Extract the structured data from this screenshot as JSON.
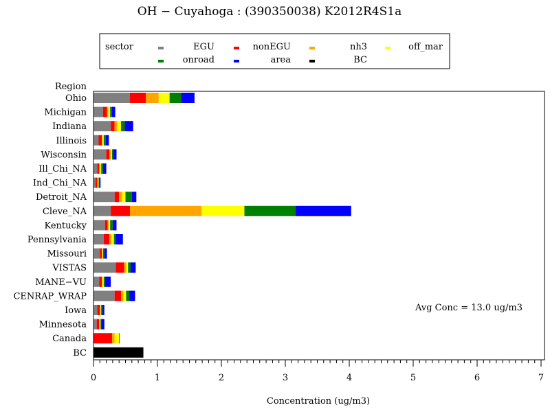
{
  "chart_data": {
    "type": "bar",
    "stacked": true,
    "orientation": "horizontal",
    "title": "OH − Cuyahoga : (390350038) K2012R4S1a",
    "xlabel": "Concentration (ug/m3)",
    "ylabel": "Region",
    "xlim": [
      0,
      7
    ],
    "xticks": [
      0,
      1,
      2,
      3,
      4,
      5,
      6,
      7
    ],
    "legend_title": "sector",
    "legend_position": "top",
    "annotation": "Avg Conc = 13.0 ug/m3",
    "categories": [
      "Ohio",
      "Michigan",
      "Indiana",
      "Illinois",
      "Wisconsin",
      "Ill_Chi_NA",
      "Ind_Chi_NA",
      "Detroit_NA",
      "Cleve_NA",
      "Kentucky",
      "Pennsylvania",
      "Missouri",
      "VISTAS",
      "MANE−VU",
      "CENRAP_WRAP",
      "Iowa",
      "Minnesota",
      "Canada",
      "BC"
    ],
    "series": [
      {
        "name": "EGU",
        "color": "#808080",
        "values": [
          0.57,
          0.15,
          0.27,
          0.08,
          0.2,
          0.06,
          0.03,
          0.33,
          0.27,
          0.18,
          0.16,
          0.1,
          0.35,
          0.09,
          0.33,
          0.06,
          0.05,
          0.0,
          0.0
        ]
      },
      {
        "name": "nonEGU",
        "color": "#ff0000",
        "values": [
          0.25,
          0.06,
          0.06,
          0.05,
          0.05,
          0.03,
          0.03,
          0.07,
          0.3,
          0.04,
          0.09,
          0.03,
          0.13,
          0.04,
          0.1,
          0.04,
          0.04,
          0.29,
          0.0
        ]
      },
      {
        "name": "nh3",
        "color": "#ffa500",
        "values": [
          0.2,
          0.02,
          0.04,
          0.01,
          0.02,
          0.01,
          0.01,
          0.05,
          1.12,
          0.02,
          0.03,
          0.01,
          0.03,
          0.01,
          0.04,
          0.01,
          0.01,
          0.04,
          0.0
        ]
      },
      {
        "name": "off_mar",
        "color": "#ffff00",
        "values": [
          0.17,
          0.03,
          0.06,
          0.02,
          0.02,
          0.02,
          0.01,
          0.05,
          0.67,
          0.02,
          0.04,
          0.01,
          0.03,
          0.02,
          0.04,
          0.01,
          0.01,
          0.07,
          0.0
        ]
      },
      {
        "name": "onroad",
        "color": "#008000",
        "values": [
          0.18,
          0.03,
          0.06,
          0.03,
          0.02,
          0.03,
          0.01,
          0.1,
          0.8,
          0.04,
          0.03,
          0.02,
          0.04,
          0.02,
          0.05,
          0.02,
          0.01,
          0.01,
          0.0
        ]
      },
      {
        "name": "area",
        "color": "#0000ff",
        "values": [
          0.21,
          0.05,
          0.13,
          0.05,
          0.05,
          0.05,
          0.02,
          0.07,
          0.87,
          0.06,
          0.11,
          0.04,
          0.08,
          0.09,
          0.09,
          0.03,
          0.05,
          0.0,
          0.0
        ]
      },
      {
        "name": "BC",
        "color": "#000000",
        "values": [
          0.0,
          0.0,
          0.0,
          0.0,
          0.0,
          0.0,
          0.0,
          0.0,
          0.0,
          0.0,
          0.0,
          0.0,
          0.0,
          0.0,
          0.0,
          0.0,
          0.0,
          0.0,
          0.78
        ]
      }
    ]
  }
}
